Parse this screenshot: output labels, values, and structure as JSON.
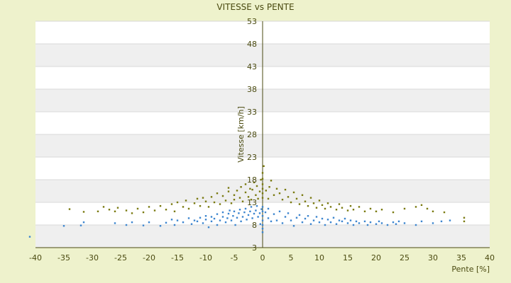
{
  "chart_data": {
    "type": "scatter",
    "title": "VITESSE vs PENTE",
    "xlabel": "Pente [%]",
    "ylabel": "Vitesse [km/h]",
    "xlim": [
      -40,
      40
    ],
    "ylim": [
      3,
      53
    ],
    "x_ticks": [
      -40,
      -35,
      -30,
      -25,
      -20,
      -15,
      -10,
      -5,
      0,
      5,
      10,
      15,
      20,
      25,
      30,
      35,
      40
    ],
    "y_ticks": [
      3,
      8,
      13,
      18,
      23,
      28,
      33,
      38,
      43,
      48,
      53
    ],
    "grid": true,
    "legend": "none",
    "colors": {
      "background": "#eef2cc",
      "band": "#efefef",
      "plot": "#ffffff",
      "axis": "#4a4a10"
    },
    "series": [
      {
        "color": "#3d86cf",
        "points": [
          [
            -41,
            5.4
          ],
          [
            -35,
            7.8
          ],
          [
            -32,
            7.9
          ],
          [
            -31.5,
            8.6
          ],
          [
            -26,
            8.4
          ],
          [
            -24,
            8.0
          ],
          [
            -23,
            8.6
          ],
          [
            -21,
            7.9
          ],
          [
            -20,
            8.6
          ],
          [
            -18,
            7.8
          ],
          [
            -17,
            8.5
          ],
          [
            -16,
            9.2
          ],
          [
            -15.5,
            8.0
          ],
          [
            -15,
            9.0
          ],
          [
            -14,
            8.6
          ],
          [
            -13,
            9.5
          ],
          [
            -12.5,
            8.2
          ],
          [
            -12,
            9.0
          ],
          [
            -11.5,
            8.8
          ],
          [
            -11,
            9.6
          ],
          [
            -10.5,
            8.4
          ],
          [
            -10,
            9.2
          ],
          [
            -10,
            10.0
          ],
          [
            -9.5,
            7.5
          ],
          [
            -9,
            8.8
          ],
          [
            -9,
            9.8
          ],
          [
            -8.5,
            9.4
          ],
          [
            -8,
            8.0
          ],
          [
            -8,
            10.4
          ],
          [
            -7.5,
            9.0
          ],
          [
            -7,
            9.8
          ],
          [
            -7,
            10.8
          ],
          [
            -6.5,
            8.6
          ],
          [
            -6.2,
            9.5
          ],
          [
            -6,
            10.5
          ],
          [
            -5.8,
            11.2
          ],
          [
            -5.5,
            9.0
          ],
          [
            -5.2,
            10.0
          ],
          [
            -5,
            11.0
          ],
          [
            -4.8,
            8.0
          ],
          [
            -4.5,
            9.6
          ],
          [
            -4.2,
            10.6
          ],
          [
            -4,
            11.4
          ],
          [
            -3.8,
            8.8
          ],
          [
            -3.5,
            9.8
          ],
          [
            -3.2,
            10.8
          ],
          [
            -3,
            11.6
          ],
          [
            -2.8,
            9.2
          ],
          [
            -2.5,
            10.2
          ],
          [
            -2.2,
            11.0
          ],
          [
            -2,
            12.0
          ],
          [
            -1.8,
            9.5
          ],
          [
            -1.5,
            10.5
          ],
          [
            -1.2,
            11.2
          ],
          [
            -1,
            12.2
          ],
          [
            -0.8,
            9.8
          ],
          [
            -0.5,
            10.6
          ],
          [
            -0.4,
            8.2
          ],
          [
            -0.2,
            11.5
          ],
          [
            0,
            6.4
          ],
          [
            0,
            7.2
          ],
          [
            0,
            8.0
          ],
          [
            0,
            9.0
          ],
          [
            0,
            10.0
          ],
          [
            0,
            11.0
          ],
          [
            0,
            12.0
          ],
          [
            0.5,
            10.8
          ],
          [
            1,
            9.5
          ],
          [
            1,
            11.6
          ],
          [
            1.5,
            8.8
          ],
          [
            2,
            10.4
          ],
          [
            2.5,
            9.0
          ],
          [
            3,
            11.0
          ],
          [
            3.5,
            8.4
          ],
          [
            4,
            9.8
          ],
          [
            4.5,
            10.6
          ],
          [
            5,
            9.0
          ],
          [
            5.5,
            7.8
          ],
          [
            6,
            9.6
          ],
          [
            6.5,
            10.2
          ],
          [
            7,
            8.6
          ],
          [
            7.5,
            9.4
          ],
          [
            8,
            10.0
          ],
          [
            8.5,
            8.2
          ],
          [
            9,
            9.0
          ],
          [
            9.5,
            9.8
          ],
          [
            10,
            8.6
          ],
          [
            10.5,
            9.4
          ],
          [
            11,
            8.0
          ],
          [
            11.5,
            9.2
          ],
          [
            12,
            8.6
          ],
          [
            12.5,
            9.6
          ],
          [
            13,
            8.2
          ],
          [
            13.5,
            9.0
          ],
          [
            14,
            8.8
          ],
          [
            14.5,
            9.4
          ],
          [
            15,
            8.4
          ],
          [
            15.5,
            9.0
          ],
          [
            16,
            8.0
          ],
          [
            16.5,
            8.8
          ],
          [
            17,
            8.4
          ],
          [
            18,
            8.8
          ],
          [
            18.5,
            8.0
          ],
          [
            19,
            8.6
          ],
          [
            20,
            8.2
          ],
          [
            20.5,
            8.8
          ],
          [
            21,
            8.4
          ],
          [
            22,
            8.0
          ],
          [
            23,
            8.6
          ],
          [
            23.5,
            8.2
          ],
          [
            24,
            8.8
          ],
          [
            25,
            8.4
          ],
          [
            27,
            8.0
          ],
          [
            28,
            8.8
          ],
          [
            30,
            8.4
          ],
          [
            31.5,
            8.8
          ],
          [
            33,
            9.0
          ]
        ]
      },
      {
        "color": "#7a7a10",
        "points": [
          [
            -34,
            11.5
          ],
          [
            -31.5,
            10.9
          ],
          [
            -29,
            11.0
          ],
          [
            -28,
            12.0
          ],
          [
            -27,
            11.4
          ],
          [
            -26,
            11.0
          ],
          [
            -25.5,
            11.8
          ],
          [
            -24,
            11.2
          ],
          [
            -23,
            10.6
          ],
          [
            -22,
            11.6
          ],
          [
            -21,
            10.8
          ],
          [
            -20,
            12.0
          ],
          [
            -19,
            11.2
          ],
          [
            -18,
            12.2
          ],
          [
            -17,
            11.4
          ],
          [
            -16,
            12.6
          ],
          [
            -15.5,
            11.0
          ],
          [
            -15,
            13.0
          ],
          [
            -14,
            12.0
          ],
          [
            -13.5,
            13.4
          ],
          [
            -13,
            11.6
          ],
          [
            -12,
            12.8
          ],
          [
            -11.5,
            13.8
          ],
          [
            -11,
            12.2
          ],
          [
            -10.5,
            14.0
          ],
          [
            -10,
            13.2
          ],
          [
            -9.5,
            12.0
          ],
          [
            -9,
            14.2
          ],
          [
            -8.5,
            13.0
          ],
          [
            -8,
            15.0
          ],
          [
            -7.5,
            12.6
          ],
          [
            -7,
            14.4
          ],
          [
            -6.5,
            13.4
          ],
          [
            -6,
            15.4
          ],
          [
            -6,
            16.2
          ],
          [
            -5.5,
            12.8
          ],
          [
            -5,
            14.6
          ],
          [
            -5,
            13.6
          ],
          [
            -4.5,
            15.6
          ],
          [
            -4,
            14.0
          ],
          [
            -3.8,
            16.4
          ],
          [
            -3.5,
            13.2
          ],
          [
            -3,
            15.2
          ],
          [
            -3,
            17.0
          ],
          [
            -2.5,
            14.2
          ],
          [
            -2.2,
            16.0
          ],
          [
            -2,
            13.6
          ],
          [
            -1.8,
            15.8
          ],
          [
            -1.5,
            17.4
          ],
          [
            -1.2,
            14.6
          ],
          [
            -1,
            16.6
          ],
          [
            -0.8,
            13.8
          ],
          [
            -0.5,
            15.4
          ],
          [
            -0.3,
            18.0
          ],
          [
            0,
            14.0
          ],
          [
            0,
            15.0
          ],
          [
            0,
            16.0
          ],
          [
            0,
            17.0
          ],
          [
            0,
            18.2
          ],
          [
            0,
            19.5
          ],
          [
            0.2,
            21.0
          ],
          [
            0.6,
            15.6
          ],
          [
            1,
            13.8
          ],
          [
            1.2,
            16.4
          ],
          [
            1.5,
            17.8
          ],
          [
            2,
            14.6
          ],
          [
            2.5,
            16.0
          ],
          [
            3,
            15.0
          ],
          [
            3.5,
            13.6
          ],
          [
            4,
            15.8
          ],
          [
            4.5,
            14.2
          ],
          [
            5,
            13.0
          ],
          [
            5.5,
            15.2
          ],
          [
            6,
            13.8
          ],
          [
            6.5,
            12.6
          ],
          [
            7,
            14.6
          ],
          [
            7.5,
            13.2
          ],
          [
            8,
            12.2
          ],
          [
            8.5,
            14.0
          ],
          [
            9,
            12.8
          ],
          [
            9.5,
            11.8
          ],
          [
            10,
            13.4
          ],
          [
            10.5,
            12.4
          ],
          [
            11,
            11.6
          ],
          [
            11.5,
            12.8
          ],
          [
            12,
            12.0
          ],
          [
            13,
            11.4
          ],
          [
            13.5,
            12.6
          ],
          [
            14,
            11.8
          ],
          [
            15,
            11.2
          ],
          [
            15.5,
            12.2
          ],
          [
            16,
            11.4
          ],
          [
            17,
            12.0
          ],
          [
            18,
            11.0
          ],
          [
            19,
            11.6
          ],
          [
            20,
            11.0
          ],
          [
            21,
            11.4
          ],
          [
            23,
            10.8
          ],
          [
            25,
            11.6
          ],
          [
            27,
            12.0
          ],
          [
            28,
            12.4
          ],
          [
            29,
            11.6
          ],
          [
            30,
            11.0
          ],
          [
            32,
            10.8
          ],
          [
            35.5,
            9.6
          ],
          [
            35.5,
            8.8
          ]
        ]
      }
    ]
  }
}
